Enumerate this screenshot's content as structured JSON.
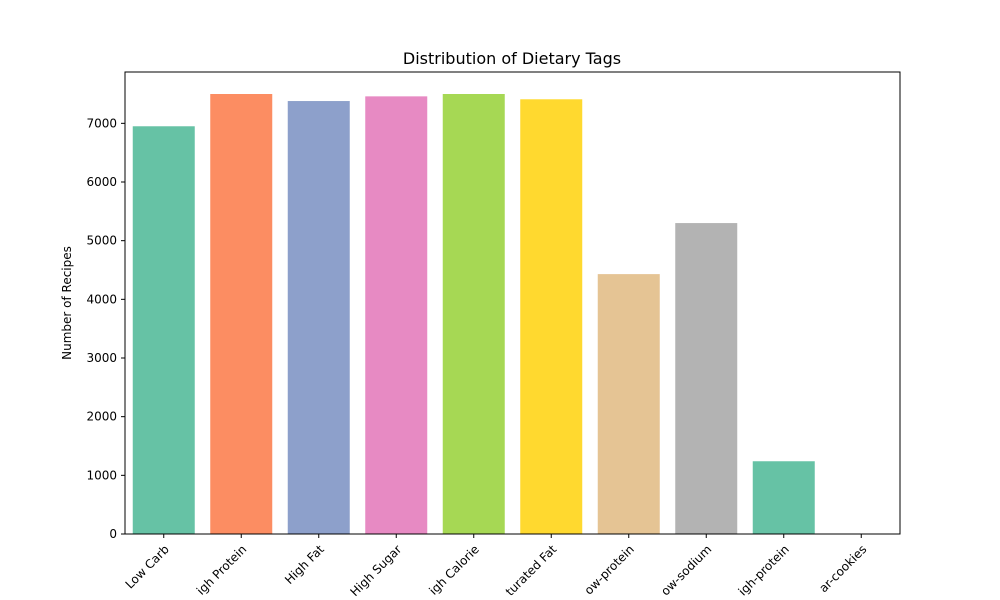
{
  "chart_data": {
    "type": "bar",
    "title": "Distribution of Dietary Tags",
    "xlabel": "",
    "ylabel": "Number of Recipes",
    "categories": [
      "Low Carb",
      "High Protein",
      "High Fat",
      "High Sugar",
      "High Calorie",
      "High Saturated Fat",
      "low-protein",
      "low-sodium",
      "high-protein",
      "low-sugar-cookies"
    ],
    "visible_tick_labels": [
      "Low Carb",
      "igh Protein",
      "High Fat",
      "High Sugar",
      "igh Calorie",
      "turated Fat",
      "ow-protein",
      "ow-sodium",
      "igh-protein",
      "ar-cookies"
    ],
    "values": [
      6950,
      7500,
      7380,
      7460,
      7500,
      7410,
      4430,
      5300,
      1240,
      0
    ],
    "colors": [
      "#66c2a5",
      "#fc8d62",
      "#8da0cb",
      "#e78ac3",
      "#a6d854",
      "#ffd92f",
      "#e5c494",
      "#b3b3b3",
      "#66c2a5",
      "#fc8d62"
    ],
    "ylim": [
      0,
      7875
    ],
    "yticks": [
      0,
      1000,
      2000,
      3000,
      4000,
      5000,
      6000,
      7000
    ],
    "grid": false,
    "legend": "none"
  }
}
